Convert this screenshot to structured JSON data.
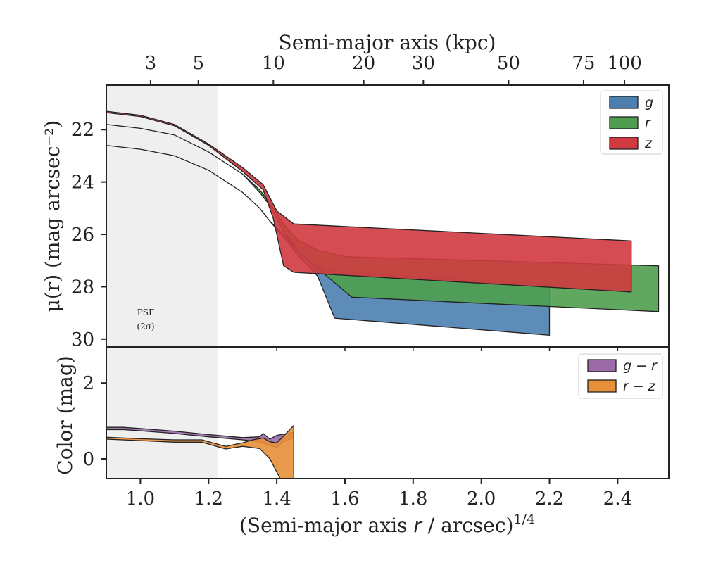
{
  "chart_data": [
    {
      "type": "area",
      "panel": "surface-brightness",
      "ylabel": "μ(r) (mag arcsec⁻²)",
      "ylim": [
        30.3,
        20.3
      ],
      "yticks": [
        22,
        24,
        26,
        28,
        30
      ],
      "xlim": [
        0.9,
        2.55
      ],
      "top_axis_label": "Semi-major axis (kpc)",
      "top_ticks": [
        {
          "label": "3",
          "x": 1.03
        },
        {
          "label": "5",
          "x": 1.17
        },
        {
          "label": "10",
          "x": 1.39
        },
        {
          "label": "20",
          "x": 1.655
        },
        {
          "label": "30",
          "x": 1.83
        },
        {
          "label": "50",
          "x": 2.08
        },
        {
          "label": "75",
          "x": 2.3
        },
        {
          "label": "100",
          "x": 2.42
        }
      ],
      "psf_region": {
        "x": [
          0.9,
          1.22
        ],
        "label_line1": "PSF",
        "label_line2": "(2σ)"
      },
      "legend": "top-right",
      "series": [
        {
          "name": "g",
          "color": "#4c7fb0",
          "upper": [
            [
              0.9,
              22.6
            ],
            [
              1.0,
              22.75
            ],
            [
              1.1,
              23.0
            ],
            [
              1.2,
              23.55
            ],
            [
              1.3,
              24.4
            ],
            [
              1.35,
              25.0
            ],
            [
              1.38,
              25.5
            ],
            [
              1.42,
              26.0
            ],
            [
              1.46,
              26.6
            ],
            [
              1.5,
              27.05
            ],
            [
              1.55,
              27.3
            ],
            [
              1.6,
              27.45
            ],
            [
              2.2,
              27.9
            ]
          ],
          "lower": [
            [
              0.9,
              22.6
            ],
            [
              1.0,
              22.75
            ],
            [
              1.1,
              23.0
            ],
            [
              1.2,
              23.55
            ],
            [
              1.3,
              24.4
            ],
            [
              1.35,
              25.0
            ],
            [
              1.38,
              25.5
            ],
            [
              1.42,
              26.1
            ],
            [
              1.46,
              26.75
            ],
            [
              1.52,
              27.6
            ],
            [
              1.57,
              29.2
            ],
            [
              2.2,
              29.85
            ]
          ]
        },
        {
          "name": "r",
          "color": "#4f9e4f",
          "upper": [
            [
              0.9,
              21.8
            ],
            [
              1.0,
              21.95
            ],
            [
              1.1,
              22.2
            ],
            [
              1.2,
              22.85
            ],
            [
              1.3,
              23.7
            ],
            [
              1.35,
              24.3
            ],
            [
              1.38,
              24.8
            ],
            [
              1.42,
              25.6
            ],
            [
              1.46,
              26.2
            ],
            [
              1.52,
              26.6
            ],
            [
              1.6,
              26.85
            ],
            [
              2.52,
              27.2
            ]
          ],
          "lower": [
            [
              0.9,
              21.8
            ],
            [
              1.0,
              21.95
            ],
            [
              1.1,
              22.2
            ],
            [
              1.2,
              22.85
            ],
            [
              1.3,
              23.7
            ],
            [
              1.35,
              24.4
            ],
            [
              1.38,
              24.9
            ],
            [
              1.42,
              25.9
            ],
            [
              1.46,
              26.6
            ],
            [
              1.52,
              27.3
            ],
            [
              1.62,
              28.4
            ],
            [
              2.52,
              28.95
            ]
          ]
        },
        {
          "name": "z",
          "color": "#d03a3f",
          "upper": [
            [
              0.9,
              21.3
            ],
            [
              1.0,
              21.45
            ],
            [
              1.1,
              21.8
            ],
            [
              1.2,
              22.55
            ],
            [
              1.3,
              23.45
            ],
            [
              1.36,
              24.1
            ],
            [
              1.4,
              25.1
            ],
            [
              1.45,
              25.6
            ],
            [
              2.44,
              26.25
            ]
          ],
          "lower": [
            [
              0.9,
              21.35
            ],
            [
              1.0,
              21.5
            ],
            [
              1.1,
              21.85
            ],
            [
              1.2,
              22.6
            ],
            [
              1.3,
              23.6
            ],
            [
              1.36,
              24.3
            ],
            [
              1.39,
              25.4
            ],
            [
              1.42,
              27.2
            ],
            [
              1.45,
              27.45
            ],
            [
              2.44,
              28.2
            ]
          ]
        }
      ]
    },
    {
      "type": "area",
      "panel": "color",
      "ylabel": "Color (mag)",
      "ylim": [
        -0.52,
        2.95
      ],
      "yticks": [
        0,
        2
      ],
      "xlim": [
        0.9,
        2.55
      ],
      "xlabel": "(Semi-major axis r / arcsec)^1/4",
      "xticks": [
        1.0,
        1.2,
        1.4,
        1.6,
        1.8,
        2.0,
        2.2,
        2.4
      ],
      "legend": "top-right",
      "series": [
        {
          "name": "g − r",
          "color": "#9b6ba8",
          "upper": [
            [
              0.9,
              0.83
            ],
            [
              0.95,
              0.83
            ],
            [
              1.0,
              0.8
            ],
            [
              1.1,
              0.73
            ],
            [
              1.2,
              0.64
            ],
            [
              1.3,
              0.56
            ],
            [
              1.35,
              0.58
            ],
            [
              1.36,
              0.67
            ],
            [
              1.38,
              0.52
            ],
            [
              1.4,
              0.62
            ],
            [
              1.42,
              0.65
            ],
            [
              1.45,
              0.7
            ]
          ],
          "lower": [
            [
              0.9,
              0.77
            ],
            [
              0.95,
              0.77
            ],
            [
              1.0,
              0.74
            ],
            [
              1.1,
              0.67
            ],
            [
              1.2,
              0.58
            ],
            [
              1.3,
              0.5
            ],
            [
              1.35,
              0.45
            ],
            [
              1.38,
              0.35
            ],
            [
              1.4,
              0.3
            ],
            [
              1.42,
              0.45
            ],
            [
              1.45,
              0.55
            ]
          ]
        },
        {
          "name": "r − z",
          "color": "#e88f3a",
          "upper": [
            [
              0.9,
              0.57
            ],
            [
              1.0,
              0.53
            ],
            [
              1.1,
              0.5
            ],
            [
              1.18,
              0.5
            ],
            [
              1.25,
              0.33
            ],
            [
              1.3,
              0.42
            ],
            [
              1.33,
              0.5
            ],
            [
              1.36,
              0.55
            ],
            [
              1.38,
              0.45
            ],
            [
              1.4,
              0.42
            ],
            [
              1.42,
              0.6
            ],
            [
              1.45,
              0.88
            ]
          ],
          "lower": [
            [
              0.9,
              0.52
            ],
            [
              1.0,
              0.48
            ],
            [
              1.1,
              0.44
            ],
            [
              1.18,
              0.44
            ],
            [
              1.25,
              0.26
            ],
            [
              1.3,
              0.33
            ],
            [
              1.35,
              0.27
            ],
            [
              1.38,
              0.0
            ],
            [
              1.41,
              -0.52
            ],
            [
              1.45,
              -0.52
            ]
          ]
        }
      ]
    }
  ]
}
